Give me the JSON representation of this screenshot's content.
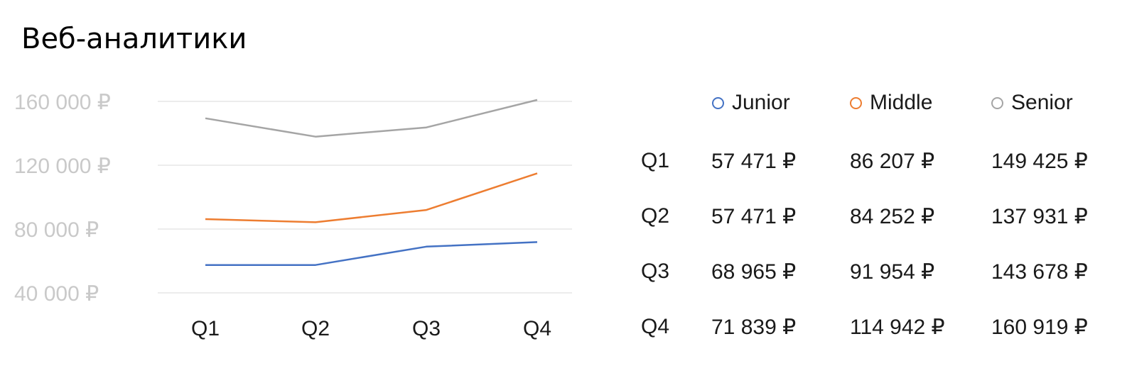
{
  "title": "Веб-аналитики",
  "chart_data": {
    "type": "line",
    "categories": [
      "Q1",
      "Q2",
      "Q3",
      "Q4"
    ],
    "y_ticks": [
      "40 000 ₽",
      "80 000 ₽",
      "120 000 ₽",
      "160 000 ₽"
    ],
    "ylim": [
      40000,
      160000
    ],
    "grid": true,
    "legend_position": "top, above table",
    "series": [
      {
        "name": "Junior",
        "color": "#4472c4",
        "values": [
          57471,
          57471,
          68965,
          71839
        ]
      },
      {
        "name": "Middle",
        "color": "#ed7d31",
        "values": [
          86207,
          84252,
          91954,
          114942
        ]
      },
      {
        "name": "Senior",
        "color": "#a5a5a5",
        "values": [
          149425,
          137931,
          143678,
          160919
        ]
      }
    ]
  },
  "table": {
    "rows": [
      {
        "label": "Q1",
        "cells": [
          "57 471 ₽",
          "86 207 ₽",
          "149 425 ₽"
        ]
      },
      {
        "label": "Q2",
        "cells": [
          "57 471 ₽",
          "84 252 ₽",
          "137 931 ₽"
        ]
      },
      {
        "label": "Q3",
        "cells": [
          "68 965 ₽",
          "91 954 ₽",
          "143 678 ₽"
        ]
      },
      {
        "label": "Q4",
        "cells": [
          "71 839 ₽",
          "114 942 ₽",
          "160 919 ₽"
        ]
      }
    ]
  }
}
